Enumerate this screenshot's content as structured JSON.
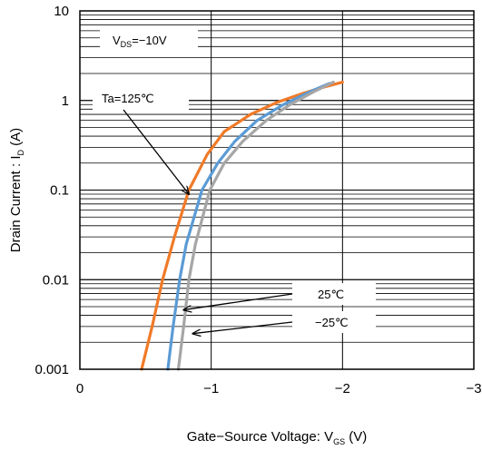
{
  "chart_data": {
    "type": "line",
    "xlabel": "Gate−Source Voltage: V",
    "xlabel_sub": "GS",
    "xlabel_unit": " (V)",
    "ylabel": "Drain Current : I",
    "ylabel_sub": "D",
    "ylabel_unit": " (A)",
    "xlim": [
      0,
      -3
    ],
    "ylim": [
      0.001,
      10
    ],
    "yscale": "log",
    "grid": true,
    "x_ticks": [
      {
        "value": 0,
        "label": "0"
      },
      {
        "value": -1,
        "label": "−1"
      },
      {
        "value": -2,
        "label": "−2"
      },
      {
        "value": -3,
        "label": "−3"
      }
    ],
    "y_ticks": [
      {
        "value": 0.001,
        "label": "0.001"
      },
      {
        "value": 0.01,
        "label": "0.01"
      },
      {
        "value": 0.1,
        "label": "0.1"
      },
      {
        "value": 1,
        "label": "1"
      },
      {
        "value": 10,
        "label": "10"
      }
    ],
    "condition": {
      "main": "V",
      "sub": "DS",
      "value": "=−10V"
    },
    "series": [
      {
        "name": "Ta=125℃",
        "color": "#f07a28",
        "points": [
          [
            -0.47,
            0.001
          ],
          [
            -0.55,
            0.003
          ],
          [
            -0.63,
            0.01
          ],
          [
            -0.72,
            0.03
          ],
          [
            -0.83,
            0.1
          ],
          [
            -0.97,
            0.25
          ],
          [
            -1.1,
            0.45
          ],
          [
            -1.3,
            0.7
          ],
          [
            -1.5,
            0.95
          ],
          [
            -1.7,
            1.2
          ],
          [
            -1.85,
            1.4
          ],
          [
            -2.0,
            1.6
          ]
        ]
      },
      {
        "name": "25℃",
        "color": "#5b9bd5",
        "points": [
          [
            -0.67,
            0.001
          ],
          [
            -0.71,
            0.003
          ],
          [
            -0.76,
            0.01
          ],
          [
            -0.81,
            0.025
          ],
          [
            -0.93,
            0.1
          ],
          [
            -1.05,
            0.2
          ],
          [
            -1.18,
            0.35
          ],
          [
            -1.35,
            0.6
          ],
          [
            -1.55,
            0.9
          ],
          [
            -1.75,
            1.25
          ],
          [
            -1.9,
            1.55
          ]
        ]
      },
      {
        "name": "−25℃",
        "color": "#a6a6a6",
        "points": [
          [
            -0.75,
            0.001
          ],
          [
            -0.79,
            0.003
          ],
          [
            -0.83,
            0.01
          ],
          [
            -0.88,
            0.025
          ],
          [
            -0.99,
            0.1
          ],
          [
            -1.1,
            0.2
          ],
          [
            -1.24,
            0.35
          ],
          [
            -1.42,
            0.6
          ],
          [
            -1.6,
            0.9
          ],
          [
            -1.78,
            1.25
          ],
          [
            -1.93,
            1.6
          ]
        ]
      }
    ],
    "annotations": [
      {
        "label": "Ta=125℃",
        "series": "Ta=125℃",
        "arrow_to": [
          -0.83,
          0.09
        ]
      },
      {
        "label": "25℃",
        "series": "25℃",
        "arrow_to": [
          -0.79,
          0.0046
        ]
      },
      {
        "label": "−25℃",
        "series": "−25℃",
        "arrow_to": [
          -0.86,
          0.0025
        ]
      }
    ]
  }
}
